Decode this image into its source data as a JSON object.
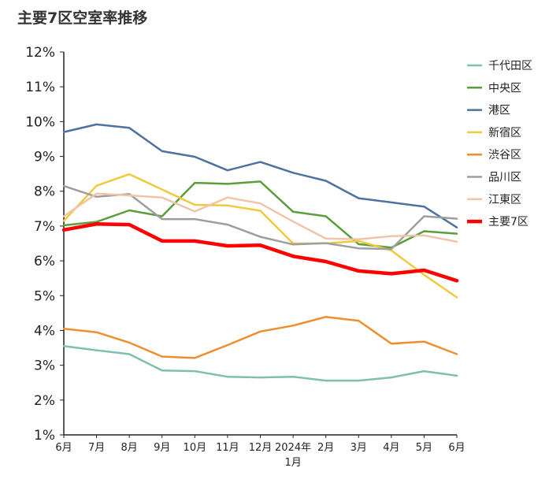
{
  "chart_data": {
    "type": "line",
    "title": "主要7区空室率推移",
    "xlabel": "",
    "ylabel": "",
    "ylim": [
      1,
      12
    ],
    "y_ticks": [
      "1%",
      "2%",
      "3%",
      "4%",
      "5%",
      "6%",
      "7%",
      "8%",
      "9%",
      "10%",
      "11%",
      "12%"
    ],
    "x_ticks": [
      "6月",
      "7月",
      "8月",
      "9月",
      "10月",
      "11月",
      "12月",
      "2024年\n1月",
      "2月",
      "3月",
      "4月",
      "5月",
      "6月"
    ],
    "grid": false,
    "legend_position": "right",
    "series": [
      {
        "name": "千代田区",
        "color": "#7fbfb2",
        "values": [
          3.55,
          3.43,
          3.32,
          2.85,
          2.83,
          2.67,
          2.65,
          2.67,
          2.56,
          2.56,
          2.65,
          2.83,
          2.7
        ]
      },
      {
        "name": "中央区",
        "color": "#5a9e3e",
        "values": [
          7.02,
          7.12,
          7.45,
          7.28,
          8.24,
          8.21,
          8.28,
          7.41,
          7.28,
          6.48,
          6.38,
          6.85,
          6.78
        ]
      },
      {
        "name": "港区",
        "color": "#4c72a0",
        "values": [
          9.7,
          9.92,
          9.82,
          9.15,
          8.99,
          8.6,
          8.84,
          8.53,
          8.3,
          7.8,
          7.68,
          7.56,
          6.96
        ]
      },
      {
        "name": "新宿区",
        "color": "#f0c93e",
        "values": [
          7.15,
          8.16,
          8.49,
          8.05,
          7.61,
          7.59,
          7.44,
          6.5,
          6.5,
          6.57,
          6.3,
          5.6,
          4.95
        ]
      },
      {
        "name": "渋谷区",
        "color": "#ef8e2e",
        "values": [
          4.05,
          3.95,
          3.65,
          3.25,
          3.21,
          3.58,
          3.97,
          4.14,
          4.39,
          4.28,
          3.62,
          3.68,
          3.32
        ]
      },
      {
        "name": "品川区",
        "color": "#9e9e9e",
        "values": [
          8.15,
          7.84,
          7.92,
          7.2,
          7.2,
          7.04,
          6.69,
          6.47,
          6.51,
          6.36,
          6.34,
          7.28,
          7.21
        ]
      },
      {
        "name": "江東区",
        "color": "#f0c4a8",
        "values": [
          7.28,
          7.93,
          7.88,
          7.82,
          7.42,
          7.82,
          7.65,
          7.13,
          6.64,
          6.62,
          6.71,
          6.73,
          6.55
        ]
      },
      {
        "name": "主要7区",
        "color": "#ff0000",
        "values": [
          6.89,
          7.06,
          7.04,
          6.57,
          6.57,
          6.43,
          6.45,
          6.13,
          5.98,
          5.71,
          5.63,
          5.73,
          5.43
        ]
      }
    ]
  }
}
